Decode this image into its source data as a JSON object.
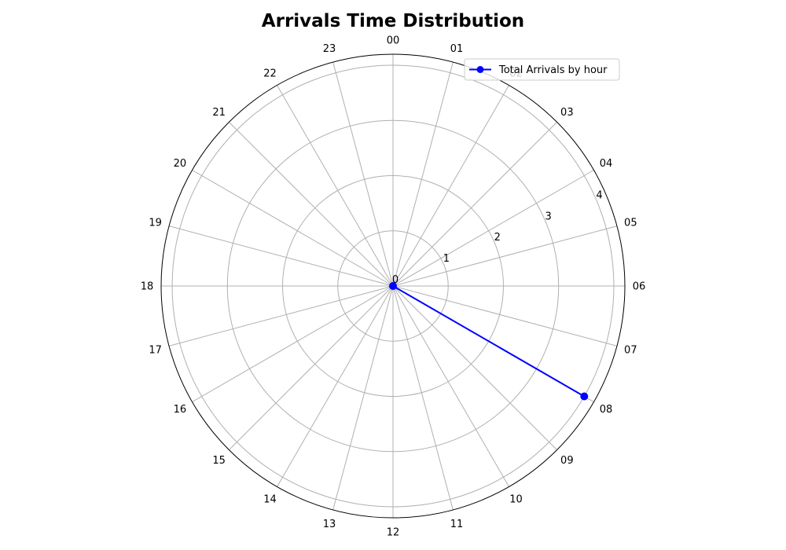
{
  "chart_data": {
    "type": "line",
    "subtype": "polar",
    "title": "Arrivals Time Distribution",
    "theta_labels": [
      "00",
      "01",
      "02",
      "03",
      "04",
      "05",
      "06",
      "07",
      "08",
      "09",
      "10",
      "11",
      "12",
      "13",
      "14",
      "15",
      "16",
      "17",
      "18",
      "19",
      "20",
      "21",
      "22",
      "23"
    ],
    "r_ticks": [
      0,
      1,
      2,
      3,
      4
    ],
    "r_tick_labels": [
      "0",
      "1",
      "2",
      "3",
      "4"
    ],
    "rlim": [
      0,
      4.2
    ],
    "direction": "clockwise",
    "zero_location": "top",
    "grid": true,
    "legend_position": "upper-right",
    "series": [
      {
        "name": "Total Arrivals by hour",
        "color": "#0000ff",
        "marker": "circle",
        "points": [
          {
            "hour": 0,
            "value": 0
          },
          {
            "hour": 8,
            "value": 4
          }
        ]
      }
    ]
  }
}
